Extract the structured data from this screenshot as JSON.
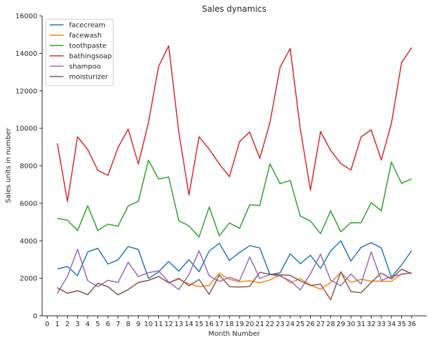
{
  "chart_data": {
    "type": "line",
    "title": "Sales dynamics",
    "xlabel": "Month Number",
    "ylabel": "Sales units in number",
    "xlim": [
      -0.5,
      37.5
    ],
    "ylim": [
      0,
      16000
    ],
    "x_ticks": [
      0,
      1,
      2,
      3,
      4,
      5,
      6,
      7,
      8,
      9,
      10,
      11,
      12,
      13,
      14,
      15,
      16,
      17,
      18,
      19,
      20,
      21,
      22,
      23,
      24,
      25,
      26,
      27,
      28,
      29,
      30,
      31,
      32,
      33,
      34,
      35,
      36
    ],
    "y_ticks": [
      0,
      2000,
      4000,
      6000,
      8000,
      10000,
      12000,
      14000,
      16000
    ],
    "legend_position": "top-left",
    "grid": false,
    "x": [
      1,
      2,
      3,
      4,
      5,
      6,
      7,
      8,
      9,
      10,
      11,
      12,
      13,
      14,
      15,
      16,
      17,
      18,
      19,
      20,
      21,
      22,
      23,
      24,
      25,
      26,
      27,
      28,
      29,
      30,
      31,
      32,
      33,
      34,
      35,
      36
    ],
    "series": [
      {
        "name": "facecream",
        "color": "#1f77b4",
        "values": [
          2500,
          2630,
          2140,
          3400,
          3600,
          2760,
          2980,
          3700,
          3540,
          1990,
          2340,
          2900,
          2380,
          3000,
          2350,
          3450,
          3870,
          2950,
          3380,
          3740,
          3620,
          2200,
          2290,
          3310,
          2780,
          3230,
          2530,
          3460,
          4000,
          2920,
          3650,
          3900,
          3620,
          2060,
          2710,
          3480
        ]
      },
      {
        "name": "facewash",
        "color": "#ff7f0e",
        "values": [
          1500,
          1200,
          1340,
          1130,
          1740,
          1555,
          1120,
          1400,
          1780,
          1890,
          2100,
          1760,
          1960,
          1700,
          1560,
          1620,
          2280,
          1940,
          1810,
          1870,
          1760,
          1910,
          2190,
          1760,
          1980,
          1640,
          1420,
          1770,
          2300,
          1780,
          1950,
          1850,
          1850,
          1840,
          2240,
          2280
        ]
      },
      {
        "name": "toothpaste",
        "color": "#2ca02c",
        "values": [
          5200,
          5100,
          4550,
          5870,
          4550,
          4890,
          4780,
          5860,
          6100,
          8300,
          7300,
          7400,
          5070,
          4800,
          4200,
          5800,
          4270,
          4950,
          4670,
          5920,
          5890,
          8100,
          7050,
          7220,
          5320,
          5060,
          4380,
          5600,
          4480,
          4970,
          4960,
          6040,
          5600,
          8200,
          7060,
          7310
        ]
      },
      {
        "name": "bathingsoap",
        "color": "#d62728",
        "values": [
          9200,
          6100,
          9550,
          8870,
          7760,
          7490,
          8980,
          9960,
          8100,
          10300,
          13300,
          14400,
          9800,
          6440,
          9550,
          8890,
          8100,
          7420,
          9290,
          9800,
          8400,
          10300,
          13250,
          14260,
          9970,
          6700,
          9830,
          8820,
          8120,
          7780,
          9540,
          9920,
          8310,
          10270,
          13500,
          14300
        ]
      },
      {
        "name": "shampoo",
        "color": "#9467bd",
        "values": [
          1200,
          2100,
          3550,
          1870,
          1560,
          1890,
          1780,
          2860,
          2100,
          2300,
          2400,
          1800,
          1400,
          2200,
          3470,
          2130,
          1830,
          2050,
          1870,
          3140,
          1990,
          2200,
          2120,
          1870,
          1380,
          2240,
          3290,
          1900,
          1600,
          2230,
          1700,
          3410,
          1890,
          2100,
          2200,
          2300
        ]
      },
      {
        "name": "moisturizer",
        "color": "#8c564b",
        "values": [
          1500,
          1200,
          1340,
          1130,
          1740,
          1550,
          1120,
          1400,
          1780,
          1890,
          2100,
          1760,
          2000,
          1600,
          1940,
          1140,
          2180,
          1560,
          1530,
          1570,
          2320,
          2220,
          2190,
          2160,
          1860,
          1620,
          1690,
          850,
          2350,
          1290,
          1230,
          1780,
          2280,
          1970,
          2490,
          2240
        ]
      }
    ]
  }
}
